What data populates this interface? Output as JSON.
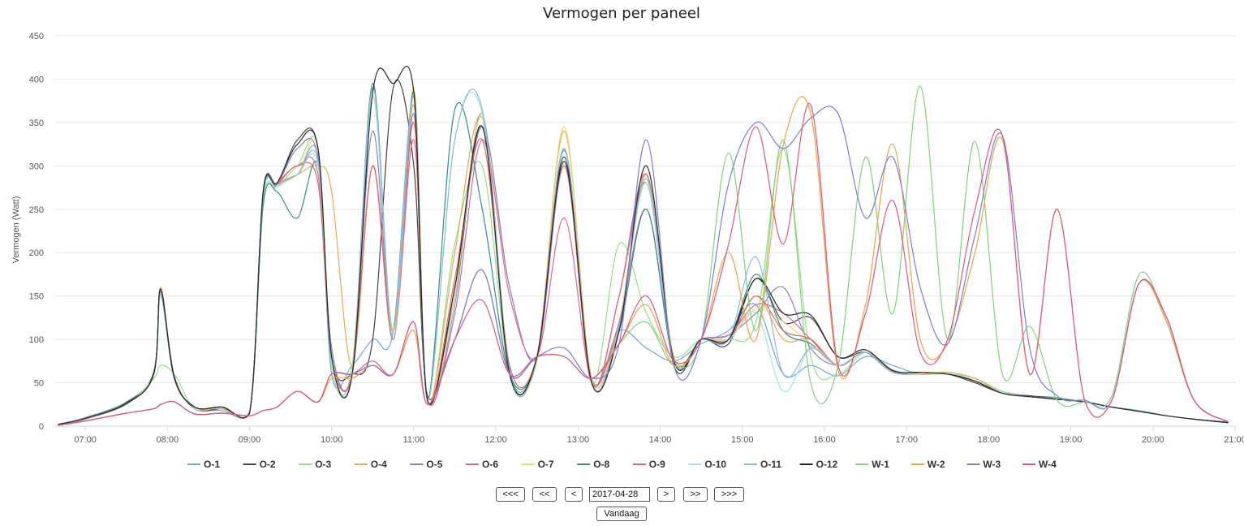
{
  "chart_data": {
    "type": "line",
    "title": "Vermogen per paneel",
    "ylabel": "Vermogen (Watt)",
    "xlabel": "",
    "ylim": [
      0,
      450
    ],
    "yticks": [
      0,
      50,
      100,
      150,
      200,
      250,
      300,
      350,
      400,
      450
    ],
    "x_range": [
      "06:38",
      "21:00"
    ],
    "xticks": [
      "07:00",
      "08:00",
      "09:00",
      "10:00",
      "11:00",
      "12:00",
      "13:00",
      "14:00",
      "15:00",
      "16:00",
      "17:00",
      "18:00",
      "19:00",
      "20:00",
      "21:00"
    ],
    "grid": "horizontal",
    "legend_position": "bottom",
    "x": [
      "06:40",
      "07:00",
      "07:30",
      "07:50",
      "07:55",
      "08:05",
      "08:20",
      "08:40",
      "09:00",
      "09:10",
      "09:20",
      "09:35",
      "09:50",
      "10:00",
      "10:15",
      "10:30",
      "10:45",
      "11:00",
      "11:10",
      "11:30",
      "11:50",
      "12:10",
      "12:30",
      "12:50",
      "13:10",
      "13:30",
      "13:50",
      "14:10",
      "14:30",
      "14:50",
      "15:10",
      "15:30",
      "15:50",
      "16:10",
      "16:30",
      "16:50",
      "17:10",
      "17:30",
      "17:50",
      "18:10",
      "18:30",
      "18:50",
      "19:10",
      "19:30",
      "19:50",
      "20:10",
      "20:30",
      "20:55"
    ],
    "series": [
      {
        "name": "O-1",
        "color": "#6fa8dc",
        "values": [
          2,
          10,
          28,
          60,
          150,
          55,
          22,
          18,
          15,
          270,
          280,
          290,
          310,
          60,
          70,
          100,
          110,
          380,
          30,
          140,
          360,
          65,
          80,
          300,
          55,
          110,
          90,
          75,
          95,
          110,
          140,
          60,
          70,
          58,
          80,
          70,
          60,
          62,
          55,
          40,
          35,
          33,
          28,
          22,
          18,
          12,
          8,
          5
        ]
      },
      {
        "name": "O-2",
        "color": "#434343",
        "values": [
          1,
          9,
          27,
          62,
          158,
          58,
          20,
          20,
          16,
          272,
          278,
          330,
          320,
          80,
          60,
          100,
          390,
          300,
          35,
          150,
          345,
          60,
          80,
          310,
          50,
          110,
          290,
          70,
          100,
          95,
          170,
          120,
          125,
          80,
          85,
          62,
          62,
          60,
          50,
          38,
          35,
          32,
          28,
          22,
          17,
          12,
          8,
          4
        ]
      },
      {
        "name": "O-3",
        "color": "#93e08a",
        "values": [
          2,
          8,
          25,
          55,
          70,
          60,
          20,
          22,
          14,
          260,
          275,
          300,
          320,
          70,
          70,
          380,
          110,
          385,
          28,
          210,
          300,
          60,
          75,
          320,
          50,
          210,
          130,
          80,
          100,
          100,
          120,
          320,
          80,
          60,
          85,
          65,
          60,
          60,
          55,
          40,
          34,
          32,
          28,
          22,
          17,
          12,
          8,
          4
        ]
      },
      {
        "name": "O-4",
        "color": "#f0a84f",
        "values": [
          2,
          8,
          26,
          60,
          160,
          55,
          22,
          20,
          14,
          265,
          280,
          290,
          300,
          270,
          70,
          300,
          110,
          370,
          30,
          200,
          355,
          60,
          80,
          340,
          55,
          120,
          290,
          80,
          100,
          100,
          150,
          100,
          100,
          70,
          85,
          62,
          60,
          62,
          55,
          38,
          34,
          31,
          28,
          22,
          17,
          12,
          8,
          4
        ]
      },
      {
        "name": "O-5",
        "color": "#8e7cc3",
        "values": [
          2,
          9,
          26,
          60,
          155,
          55,
          22,
          22,
          15,
          268,
          278,
          320,
          310,
          90,
          60,
          340,
          100,
          360,
          30,
          160,
          345,
          160,
          80,
          300,
          50,
          150,
          280,
          75,
          100,
          105,
          130,
          160,
          90,
          70,
          85,
          63,
          62,
          60,
          52,
          38,
          34,
          31,
          28,
          22,
          17,
          12,
          8,
          4
        ]
      },
      {
        "name": "O-6",
        "color": "#e06690",
        "values": [
          2,
          9,
          26,
          60,
          155,
          56,
          22,
          22,
          15,
          265,
          280,
          300,
          290,
          80,
          60,
          300,
          100,
          330,
          30,
          130,
          330,
          150,
          80,
          240,
          50,
          120,
          250,
          75,
          100,
          105,
          140,
          130,
          100,
          70,
          85,
          62,
          62,
          60,
          52,
          38,
          34,
          31,
          28,
          22,
          17,
          12,
          8,
          4
        ]
      },
      {
        "name": "O-7",
        "color": "#f5d66a",
        "values": [
          2,
          9,
          26,
          60,
          150,
          55,
          22,
          22,
          15,
          268,
          278,
          290,
          320,
          80,
          60,
          390,
          100,
          390,
          30,
          150,
          355,
          60,
          80,
          345,
          50,
          115,
          280,
          75,
          100,
          100,
          135,
          120,
          95,
          70,
          85,
          62,
          62,
          60,
          52,
          38,
          34,
          31,
          28,
          22,
          17,
          12,
          8,
          4
        ]
      },
      {
        "name": "O-8",
        "color": "#2e8f8a",
        "values": [
          2,
          9,
          26,
          60,
          158,
          56,
          22,
          22,
          15,
          255,
          270,
          240,
          300,
          80,
          60,
          395,
          100,
          385,
          30,
          365,
          250,
          60,
          80,
          318,
          50,
          110,
          250,
          75,
          100,
          100,
          175,
          110,
          95,
          70,
          85,
          62,
          62,
          60,
          52,
          38,
          34,
          31,
          28,
          22,
          17,
          12,
          8,
          4
        ]
      },
      {
        "name": "O-9",
        "color": "#e06666",
        "values": [
          2,
          9,
          26,
          60,
          155,
          56,
          22,
          22,
          15,
          268,
          278,
          300,
          280,
          80,
          60,
          300,
          100,
          350,
          30,
          170,
          330,
          70,
          80,
          300,
          50,
          150,
          290,
          75,
          100,
          100,
          150,
          110,
          100,
          70,
          85,
          62,
          62,
          60,
          52,
          38,
          34,
          31,
          28,
          22,
          17,
          12,
          8,
          4
        ]
      },
      {
        "name": "O-10",
        "color": "#9fe3e3",
        "values": [
          2,
          9,
          26,
          60,
          150,
          55,
          22,
          22,
          15,
          265,
          275,
          290,
          300,
          80,
          60,
          380,
          100,
          380,
          30,
          330,
          360,
          60,
          80,
          320,
          50,
          115,
          280,
          75,
          100,
          100,
          130,
          40,
          90,
          70,
          85,
          62,
          62,
          60,
          52,
          38,
          34,
          31,
          28,
          22,
          17,
          12,
          8,
          4
        ]
      },
      {
        "name": "O-11",
        "color": "#8fb8d8",
        "values": [
          2,
          9,
          26,
          60,
          152,
          55,
          22,
          22,
          15,
          268,
          278,
          290,
          305,
          80,
          60,
          390,
          100,
          380,
          30,
          330,
          365,
          60,
          80,
          320,
          50,
          115,
          285,
          75,
          100,
          100,
          195,
          60,
          90,
          70,
          85,
          62,
          62,
          60,
          52,
          38,
          34,
          31,
          28,
          22,
          17,
          12,
          8,
          4
        ]
      },
      {
        "name": "O-12",
        "color": "#262626",
        "values": [
          2,
          9,
          26,
          60,
          158,
          56,
          22,
          22,
          15,
          270,
          280,
          325,
          320,
          80,
          60,
          385,
          395,
          385,
          30,
          160,
          345,
          60,
          80,
          305,
          50,
          110,
          300,
          75,
          100,
          100,
          170,
          130,
          128,
          80,
          88,
          64,
          62,
          60,
          52,
          38,
          34,
          31,
          28,
          22,
          17,
          12,
          8,
          4
        ]
      },
      {
        "name": "W-1",
        "color": "#7ed47a",
        "values": [
          1,
          6,
          15,
          20,
          25,
          28,
          14,
          15,
          12,
          18,
          22,
          40,
          28,
          60,
          60,
          70,
          60,
          110,
          25,
          100,
          180,
          60,
          80,
          80,
          55,
          95,
          120,
          70,
          100,
          315,
          110,
          330,
          50,
          70,
          310,
          130,
          392,
          100,
          328,
          60,
          115,
          30,
          28,
          35,
          175,
          120,
          30,
          5
        ]
      },
      {
        "name": "W-2",
        "color": "#f5a040",
        "values": [
          1,
          6,
          15,
          20,
          25,
          28,
          14,
          15,
          12,
          18,
          22,
          40,
          28,
          55,
          55,
          70,
          60,
          110,
          25,
          100,
          180,
          60,
          80,
          80,
          55,
          95,
          140,
          70,
          100,
          200,
          100,
          325,
          360,
          65,
          140,
          325,
          100,
          95,
          200,
          330,
          60,
          250,
          30,
          30,
          165,
          120,
          30,
          5
        ]
      },
      {
        "name": "W-3",
        "color": "#7b7be0",
        "values": [
          1,
          6,
          15,
          20,
          25,
          28,
          14,
          15,
          12,
          18,
          22,
          40,
          28,
          60,
          60,
          70,
          60,
          120,
          25,
          100,
          180,
          60,
          80,
          90,
          55,
          95,
          330,
          70,
          100,
          280,
          350,
          320,
          355,
          360,
          240,
          310,
          160,
          95,
          220,
          335,
          90,
          35,
          30,
          30,
          165,
          125,
          30,
          5
        ]
      },
      {
        "name": "W-4",
        "color": "#e05580",
        "values": [
          1,
          6,
          15,
          20,
          25,
          28,
          14,
          15,
          12,
          18,
          22,
          40,
          28,
          60,
          60,
          75,
          60,
          120,
          25,
          100,
          145,
          60,
          80,
          80,
          55,
          95,
          150,
          75,
          100,
          210,
          345,
          210,
          370,
          70,
          130,
          260,
          85,
          100,
          250,
          335,
          60,
          250,
          30,
          30,
          165,
          125,
          30,
          5
        ]
      }
    ]
  },
  "nav": {
    "prev3": "<<<",
    "prev2": "<<",
    "prev1": "<",
    "date": "2017-04-28",
    "next1": ">",
    "next2": ">>",
    "next3": ">>>",
    "today": "Vandaag"
  }
}
